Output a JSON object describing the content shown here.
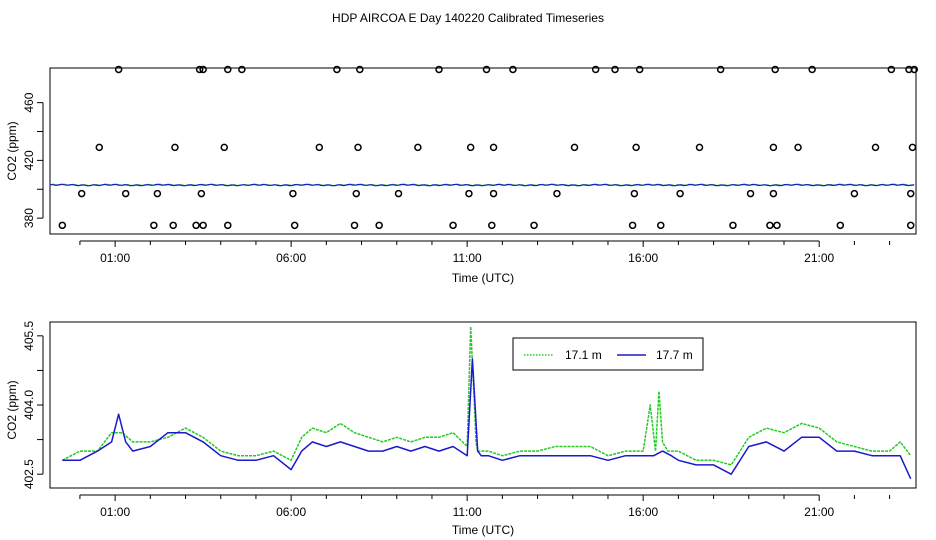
{
  "figure": {
    "title": "HDP AIRCOA E  Day 140220  Calibrated Timeseries"
  },
  "colors": {
    "green": "#22cc22",
    "blue": "#1a1acc",
    "axis": "#000000",
    "marker": "#000000"
  },
  "chart_data": [
    {
      "type": "scatter",
      "title": "",
      "xlabel": "Time (UTC)",
      "ylabel": "CO2 (ppm)",
      "x_ticks": [
        "01:00",
        "06:00",
        "11:00",
        "16:00",
        "21:00"
      ],
      "y_ticks": [
        "380",
        "420",
        "460"
      ],
      "x_range_hours": [
        -0.85,
        23.75
      ],
      "ylim": [
        369,
        484
      ],
      "grid": false,
      "legend": "none",
      "calibration_points": {
        "x_hours": [
          -0.5,
          0.05,
          0.55,
          1.1,
          1.3,
          2.1,
          2.2,
          2.65,
          2.7,
          3.3,
          3.4,
          3.45,
          3.5,
          3.5,
          4.1,
          4.2,
          4.2,
          4.6,
          6.05,
          6.1,
          6.8,
          7.3,
          7.8,
          7.85,
          7.9,
          7.95,
          8.5,
          9.05,
          9.6,
          10.2,
          10.6,
          11.05,
          11.1,
          11.55,
          11.7,
          11.75,
          11.75,
          12.3,
          12.9,
          13.55,
          14.05,
          14.65,
          15.2,
          15.7,
          15.75,
          15.8,
          15.9,
          16.5,
          17.05,
          17.6,
          18.2,
          18.55,
          19.05,
          19.6,
          19.7,
          19.7,
          19.75,
          19.8,
          20.4,
          20.8,
          21.6,
          22.0,
          22.6,
          23.05,
          23.55,
          23.6,
          23.6,
          23.65,
          23.7
        ],
        "y_ppm": [
          375,
          397,
          429,
          483,
          397,
          375,
          397,
          375,
          429,
          375,
          483,
          397,
          375,
          483,
          429,
          375,
          483,
          483,
          397,
          375,
          429,
          483,
          375,
          397,
          429,
          483,
          375,
          397,
          429,
          483,
          375,
          397,
          429,
          483,
          375,
          397,
          429,
          483,
          375,
          397,
          429,
          483,
          483,
          375,
          397,
          429,
          483,
          375,
          397,
          429,
          483,
          375,
          397,
          375,
          397,
          429,
          483,
          375,
          429,
          483,
          375,
          397,
          429,
          483,
          483,
          375,
          397,
          429,
          483
        ]
      },
      "series": [
        {
          "name": "",
          "color": "green",
          "x_hours_range": [
            -0.85,
            23.7
          ],
          "y_ppm": 403
        },
        {
          "name": "",
          "color": "blue",
          "x_hours_range": [
            -0.85,
            23.7
          ],
          "y_ppm": 402.9
        }
      ]
    },
    {
      "type": "line",
      "title": "",
      "xlabel": "Time (UTC)",
      "ylabel": "CO2 (ppm)",
      "x_ticks": [
        "01:00",
        "06:00",
        "11:00",
        "16:00",
        "21:00"
      ],
      "y_ticks": [
        "402.5",
        "404.0",
        "405.5"
      ],
      "x_range_hours": [
        -0.85,
        23.75
      ],
      "ylim": [
        402.2,
        405.8
      ],
      "grid": false,
      "legend": "top-center",
      "series": [
        {
          "name": "17.1 m",
          "color": "green",
          "x_hours": [
            -0.5,
            0.0,
            0.5,
            0.9,
            1.2,
            1.5,
            2.0,
            2.5,
            3.0,
            3.5,
            4.0,
            4.5,
            5.0,
            5.5,
            6.0,
            6.3,
            6.6,
            7.0,
            7.4,
            7.8,
            8.2,
            8.6,
            9.0,
            9.4,
            9.8,
            10.2,
            10.6,
            11.0,
            11.1,
            11.2,
            11.25,
            11.3,
            11.4,
            11.6,
            12.0,
            12.5,
            13.0,
            13.5,
            14.0,
            14.5,
            15.0,
            15.5,
            16.0,
            16.2,
            16.35,
            16.45,
            16.55,
            16.7,
            17.0,
            17.5,
            18.0,
            18.5,
            19.0,
            19.5,
            20.0,
            20.5,
            21.0,
            21.5,
            22.0,
            22.5,
            23.0,
            23.3,
            23.6
          ],
          "y_ppm": [
            402.8,
            403.0,
            403.0,
            403.4,
            403.4,
            403.2,
            403.2,
            403.3,
            403.5,
            403.3,
            403.0,
            402.9,
            402.9,
            403.0,
            402.8,
            403.3,
            403.5,
            403.4,
            403.6,
            403.4,
            403.3,
            403.2,
            403.3,
            403.2,
            403.3,
            403.3,
            403.4,
            403.1,
            405.7,
            404.1,
            403.2,
            403.0,
            403.0,
            403.0,
            402.9,
            403.0,
            403.0,
            403.1,
            403.1,
            403.1,
            402.9,
            403.0,
            403.0,
            404.0,
            403.0,
            404.3,
            403.2,
            403.0,
            403.0,
            402.8,
            402.8,
            402.7,
            403.3,
            403.5,
            403.4,
            403.6,
            403.5,
            403.2,
            403.1,
            403.0,
            403.0,
            403.2,
            402.9
          ]
        },
        {
          "name": "17.7 m",
          "color": "blue",
          "x_hours": [
            -0.5,
            0.0,
            0.5,
            0.9,
            1.1,
            1.3,
            1.5,
            2.0,
            2.5,
            3.0,
            3.5,
            4.0,
            4.5,
            5.0,
            5.5,
            6.0,
            6.3,
            6.6,
            7.0,
            7.4,
            7.8,
            8.2,
            8.6,
            9.0,
            9.4,
            9.8,
            10.2,
            10.6,
            11.0,
            11.15,
            11.3,
            11.4,
            11.6,
            12.0,
            12.5,
            13.0,
            13.5,
            14.0,
            14.5,
            15.0,
            15.5,
            16.0,
            16.3,
            16.55,
            16.8,
            17.0,
            17.5,
            18.0,
            18.5,
            19.0,
            19.5,
            20.0,
            20.5,
            21.0,
            21.5,
            22.0,
            22.5,
            23.0,
            23.3,
            23.6
          ],
          "y_ppm": [
            402.8,
            402.8,
            403.0,
            403.2,
            403.8,
            403.2,
            403.0,
            403.1,
            403.4,
            403.4,
            403.2,
            402.9,
            402.8,
            402.8,
            402.9,
            402.6,
            403.0,
            403.2,
            403.1,
            403.2,
            403.1,
            403.0,
            403.0,
            403.1,
            403.0,
            403.1,
            403.0,
            403.1,
            402.9,
            405.0,
            403.0,
            402.9,
            402.9,
            402.8,
            402.9,
            402.9,
            402.9,
            402.9,
            402.9,
            402.8,
            402.9,
            402.9,
            402.9,
            403.0,
            402.9,
            402.8,
            402.7,
            402.7,
            402.5,
            403.1,
            403.2,
            403.0,
            403.3,
            403.3,
            403.0,
            403.0,
            402.9,
            402.9,
            402.9,
            402.4
          ]
        }
      ]
    }
  ]
}
